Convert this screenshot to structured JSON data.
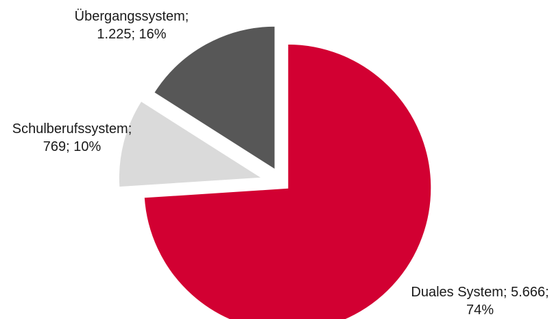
{
  "chart_data": {
    "type": "pie",
    "title": "",
    "colors": {
      "Duales System": "#d20032",
      "Übergangssystem": "#575757",
      "Schulberufssystem": "#dadada"
    },
    "slices": [
      {
        "label": "Duales System",
        "value": 5666,
        "percent": 74,
        "label_lines": [
          "Duales System; 5.666;",
          "74%"
        ]
      },
      {
        "label": "Schulberufssystem",
        "value": 769,
        "percent": 10,
        "label_lines": [
          "Schulberufssystem;",
          "769; 10%"
        ]
      },
      {
        "label": "Übergangssystem",
        "value": 1225,
        "percent": 16,
        "label_lines": [
          "Übergangssystem;",
          "1.225; 16%"
        ]
      }
    ],
    "start_angle": "12 o'clock, clockwise",
    "exploded": true,
    "legend": "none"
  }
}
